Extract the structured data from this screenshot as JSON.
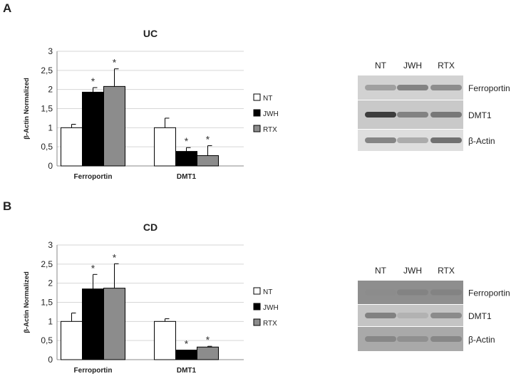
{
  "panels": [
    {
      "label": "A",
      "chart_data": {
        "type": "bar",
        "title": "UC",
        "ylabel": "β-Actin Normalized",
        "xlabel": "",
        "ylim": [
          0,
          3
        ],
        "yticks": [
          "0",
          "0,5",
          "1",
          "1,5",
          "2",
          "2,5",
          "3"
        ],
        "categories": [
          "Ferroportin",
          "DMT1"
        ],
        "series": [
          {
            "name": "NT",
            "color": "#ffffff",
            "values": [
              1.0,
              1.0
            ],
            "errors": [
              0.09,
              0.25
            ],
            "significant": [
              false,
              false
            ]
          },
          {
            "name": "JWH",
            "color": "#000000",
            "values": [
              1.93,
              0.38
            ],
            "errors": [
              0.12,
              0.1
            ],
            "significant": [
              true,
              true
            ]
          },
          {
            "name": "RTX",
            "color": "#8c8c8c",
            "values": [
              2.08,
              0.27
            ],
            "errors": [
              0.46,
              0.26
            ],
            "significant": [
              true,
              true
            ]
          }
        ],
        "annotation_symbol": "*",
        "grid": true,
        "legend_position": "right"
      },
      "blot": {
        "lanes": [
          "NT",
          "JWH",
          "RTX"
        ],
        "rows": [
          "Ferroportin",
          "DMT1",
          "β-Actin"
        ]
      }
    },
    {
      "label": "B",
      "chart_data": {
        "type": "bar",
        "title": "CD",
        "ylabel": "β-Actin Normalized",
        "xlabel": "",
        "ylim": [
          0,
          3
        ],
        "yticks": [
          "0",
          "0,5",
          "1",
          "1,5",
          "2",
          "2,5",
          "3"
        ],
        "categories": [
          "Ferroportin",
          "DMT1"
        ],
        "series": [
          {
            "name": "NT",
            "color": "#ffffff",
            "values": [
              1.0,
              1.0
            ],
            "errors": [
              0.22,
              0.07
            ],
            "significant": [
              false,
              false
            ]
          },
          {
            "name": "JWH",
            "color": "#000000",
            "values": [
              1.85,
              0.25
            ],
            "errors": [
              0.38,
              0.0
            ],
            "significant": [
              true,
              true
            ]
          },
          {
            "name": "RTX",
            "color": "#8c8c8c",
            "values": [
              1.87,
              0.33
            ],
            "errors": [
              0.64,
              0.02
            ],
            "significant": [
              true,
              true
            ]
          }
        ],
        "annotation_symbol": "*",
        "grid": true,
        "legend_position": "right"
      },
      "blot": {
        "lanes": [
          "NT",
          "JWH",
          "RTX"
        ],
        "rows": [
          "Ferroportin",
          "DMT1",
          "β-Actin"
        ]
      }
    }
  ]
}
